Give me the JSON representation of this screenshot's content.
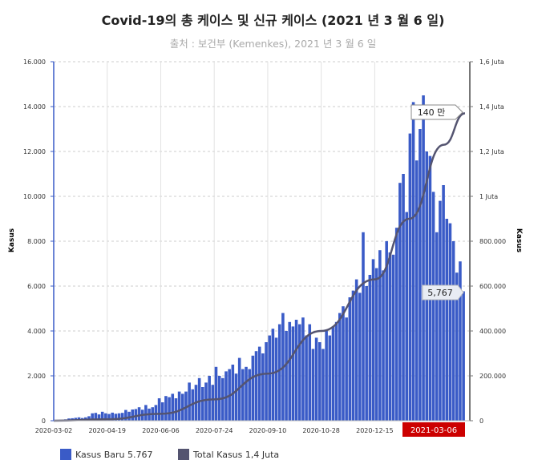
{
  "chart_data": {
    "type": "bar+line",
    "title": "Covid-19의 총 케이스 및 신규 케이스 (2021 년 3 월 6 일)",
    "subtitle": "출처 : 보건부 (Kemenkes), 2021 년 3 월 6 일",
    "ylabel_left": "Kasus",
    "ylabel_right": "Kasus",
    "ylim_left": [
      0,
      16000
    ],
    "ylim_right": [
      0,
      1600000
    ],
    "yticks_left": [
      "0",
      "2.000",
      "4.000",
      "6.000",
      "8.000",
      "10.000",
      "12.000",
      "14.000",
      "16.000"
    ],
    "yticks_right": [
      "0",
      "200.000",
      "400.000",
      "600.000",
      "800.000",
      "1 Juta",
      "1,2 Juta",
      "1,4 Juta",
      "1,6 Juta"
    ],
    "xticks": [
      "2020-03-02",
      "2020-04-19",
      "2020-06-06",
      "2020-07-24",
      "2020-09-10",
      "2020-10-28",
      "2020-12-15"
    ],
    "x_highlight": "2021-03-06",
    "x_start": "2020-03-02",
    "x_end": "2021-03-06",
    "grid": true,
    "legend_position": "bottom-left",
    "series": [
      {
        "name": "Kasus Baru",
        "legend_value": "5.767",
        "type": "bar",
        "color": "#3a5bc7",
        "x_step_days": 3,
        "values": [
          2,
          5,
          10,
          30,
          60,
          100,
          110,
          130,
          150,
          120,
          150,
          200,
          330,
          350,
          280,
          400,
          330,
          300,
          360,
          310,
          330,
          350,
          480,
          400,
          500,
          520,
          600,
          490,
          700,
          540,
          600,
          700,
          1000,
          820,
          1100,
          1050,
          1200,
          1000,
          1300,
          1200,
          1300,
          1700,
          1400,
          1600,
          1900,
          1500,
          1700,
          2000,
          1600,
          2400,
          2000,
          1900,
          2200,
          2300,
          2500,
          2100,
          2800,
          2300,
          2400,
          2300,
          2900,
          3100,
          3300,
          3000,
          3500,
          3800,
          4100,
          3700,
          4300,
          4800,
          4000,
          4400,
          4200,
          4500,
          4300,
          4600,
          3800,
          4300,
          3200,
          3700,
          3500,
          3200,
          4000,
          3800,
          4200,
          4400,
          4800,
          5100,
          4600,
          5500,
          5800,
          6300,
          5700,
          8400,
          6000,
          6500,
          7200,
          6800,
          7600,
          6700,
          8000,
          7500,
          7400,
          8600,
          10600,
          11000,
          9300,
          12800,
          14200,
          11600,
          13000,
          14500,
          12000,
          11800,
          10200,
          8400,
          9800,
          10500,
          9000,
          8800,
          8000,
          6600,
          7100,
          5767
        ],
        "callout": "5,767"
      },
      {
        "name": "Total Kasus",
        "legend_value": "1,4 Juta",
        "type": "line",
        "color": "#545470",
        "points": [
          [
            "2020-03-02",
            0
          ],
          [
            "2020-04-19",
            6500
          ],
          [
            "2020-06-06",
            31000
          ],
          [
            "2020-07-24",
            95000
          ],
          [
            "2020-09-10",
            210000
          ],
          [
            "2020-10-28",
            400000
          ],
          [
            "2020-12-15",
            630000
          ],
          [
            "2021-01-15",
            900000
          ],
          [
            "2021-02-15",
            1230000
          ],
          [
            "2021-03-06",
            1370000
          ]
        ],
        "callout": "140 만"
      }
    ]
  }
}
